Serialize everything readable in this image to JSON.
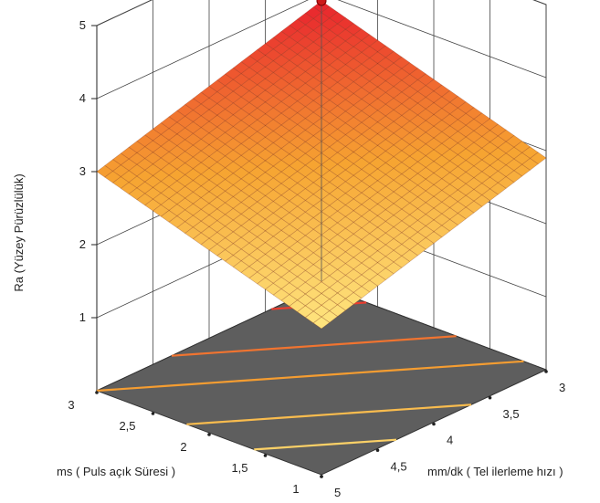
{
  "chart_data": {
    "type": "surface3d",
    "zlabel": "Ra (Yüzey Pürüzlülük)",
    "ylabel": "ms ( Puls açık Süresi )",
    "xlabel": "mm/dk ( Tel ilerleme hızı )",
    "x_axis": {
      "range": [
        3,
        5
      ],
      "ticks": [
        "3",
        "3,5",
        "4",
        "4,5",
        "5"
      ]
    },
    "y_axis": {
      "range": [
        1,
        3
      ],
      "ticks": [
        "1",
        "1,5",
        "2",
        "2,5",
        "3"
      ]
    },
    "z_axis": {
      "range": [
        0,
        5
      ],
      "ticks": [
        "1",
        "2",
        "3",
        "4",
        "5"
      ]
    },
    "surface": {
      "z_at_x3_y1": 2.9,
      "z_at_x5_y1": 2.0,
      "z_at_x3_y3": 3.9,
      "z_at_x5_y3": 3.0
    },
    "highlight_point": {
      "x": 3,
      "y": 3,
      "z": 3.9
    },
    "contour_levels": [
      2.3,
      2.6,
      3.0,
      3.3,
      3.7
    ],
    "colors": {
      "low": "#ffe680",
      "mid": "#f6a431",
      "high": "#e8222e",
      "floor": "#5e5e5e",
      "grid": "#444444",
      "point": "#cc1a1a"
    }
  }
}
